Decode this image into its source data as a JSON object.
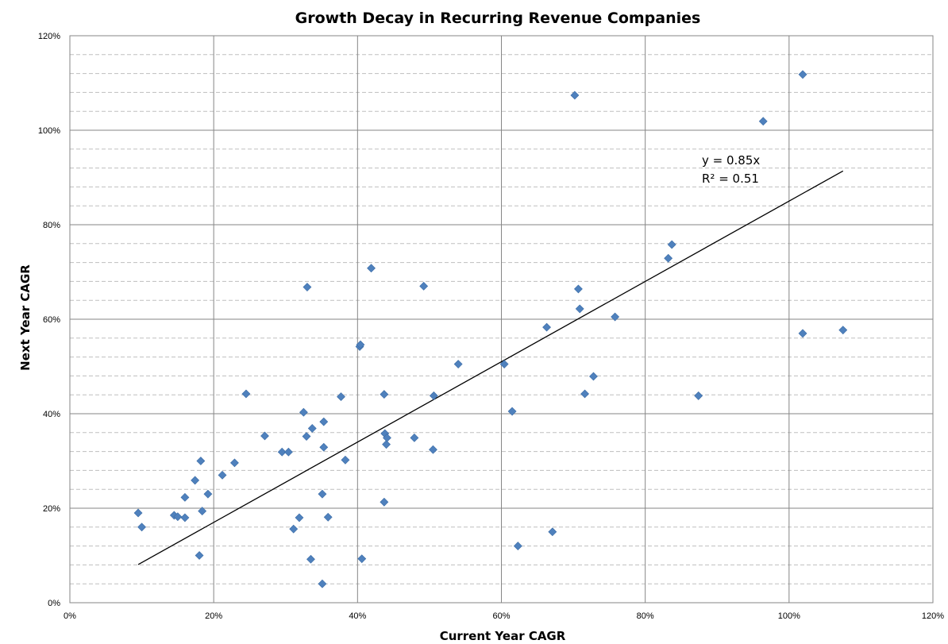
{
  "chart_data": {
    "type": "scatter",
    "title": "Growth Decay in Recurring Revenue Companies",
    "xlabel": "Current Year CAGR",
    "ylabel": "Next Year CAGR",
    "xlim": [
      0,
      120
    ],
    "ylim": [
      0,
      120
    ],
    "x_ticks": [
      "0%",
      "20%",
      "40%",
      "60%",
      "80%",
      "100%",
      "120%"
    ],
    "y_ticks": [
      "0%",
      "20%",
      "40%",
      "60%",
      "80%",
      "100%",
      "120%"
    ],
    "major_grid": true,
    "minor_grid": true,
    "marker_color": "#4F81BD",
    "points": [
      {
        "x": 9.5,
        "y": 19
      },
      {
        "x": 10,
        "y": 16
      },
      {
        "x": 14.5,
        "y": 18.5
      },
      {
        "x": 15,
        "y": 18.2
      },
      {
        "x": 16,
        "y": 22.3
      },
      {
        "x": 16,
        "y": 18
      },
      {
        "x": 17.4,
        "y": 25.9
      },
      {
        "x": 18,
        "y": 10
      },
      {
        "x": 18.2,
        "y": 30
      },
      {
        "x": 18.4,
        "y": 19.4
      },
      {
        "x": 19.2,
        "y": 23
      },
      {
        "x": 21.2,
        "y": 27
      },
      {
        "x": 22.9,
        "y": 29.6
      },
      {
        "x": 24.5,
        "y": 44.2
      },
      {
        "x": 27.1,
        "y": 35.3
      },
      {
        "x": 29.5,
        "y": 31.9
      },
      {
        "x": 30.4,
        "y": 31.9
      },
      {
        "x": 31.1,
        "y": 15.6
      },
      {
        "x": 31.9,
        "y": 18
      },
      {
        "x": 32.5,
        "y": 40.3
      },
      {
        "x": 32.9,
        "y": 35.2
      },
      {
        "x": 33.0,
        "y": 66.8
      },
      {
        "x": 33.5,
        "y": 9.2
      },
      {
        "x": 33.7,
        "y": 36.9
      },
      {
        "x": 35.1,
        "y": 23
      },
      {
        "x": 35.1,
        "y": 4
      },
      {
        "x": 35.3,
        "y": 32.9
      },
      {
        "x": 35.3,
        "y": 38.3
      },
      {
        "x": 35.9,
        "y": 18.1
      },
      {
        "x": 37.7,
        "y": 43.6
      },
      {
        "x": 38.3,
        "y": 30.2
      },
      {
        "x": 40.3,
        "y": 54.2
      },
      {
        "x": 40.4,
        "y": 54.6
      },
      {
        "x": 40.6,
        "y": 9.3
      },
      {
        "x": 41.9,
        "y": 70.8
      },
      {
        "x": 43.7,
        "y": 44.1
      },
      {
        "x": 43.7,
        "y": 21.3
      },
      {
        "x": 43.8,
        "y": 35.8
      },
      {
        "x": 44.0,
        "y": 33.5
      },
      {
        "x": 44.1,
        "y": 34.9
      },
      {
        "x": 47.9,
        "y": 34.9
      },
      {
        "x": 49.2,
        "y": 67.0
      },
      {
        "x": 50.5,
        "y": 32.4
      },
      {
        "x": 50.6,
        "y": 43.8
      },
      {
        "x": 54.0,
        "y": 50.5
      },
      {
        "x": 60.4,
        "y": 50.5
      },
      {
        "x": 61.5,
        "y": 40.5
      },
      {
        "x": 62.3,
        "y": 12.0
      },
      {
        "x": 66.3,
        "y": 58.3
      },
      {
        "x": 67.1,
        "y": 15.0
      },
      {
        "x": 70.2,
        "y": 107.4
      },
      {
        "x": 70.7,
        "y": 66.4
      },
      {
        "x": 70.9,
        "y": 62.2
      },
      {
        "x": 71.6,
        "y": 44.2
      },
      {
        "x": 72.8,
        "y": 47.9
      },
      {
        "x": 75.8,
        "y": 60.5
      },
      {
        "x": 83.2,
        "y": 72.9
      },
      {
        "x": 83.7,
        "y": 75.8
      },
      {
        "x": 87.4,
        "y": 43.8
      },
      {
        "x": 96.4,
        "y": 101.9
      },
      {
        "x": 101.9,
        "y": 111.8
      },
      {
        "x": 101.9,
        "y": 57.0
      },
      {
        "x": 107.5,
        "y": 57.7
      }
    ],
    "trendline": {
      "x_start": 9.5,
      "x_end": 107.5,
      "slope": 0.85,
      "equation": "y = 0.85x",
      "r2": "R² = 0.51"
    }
  }
}
